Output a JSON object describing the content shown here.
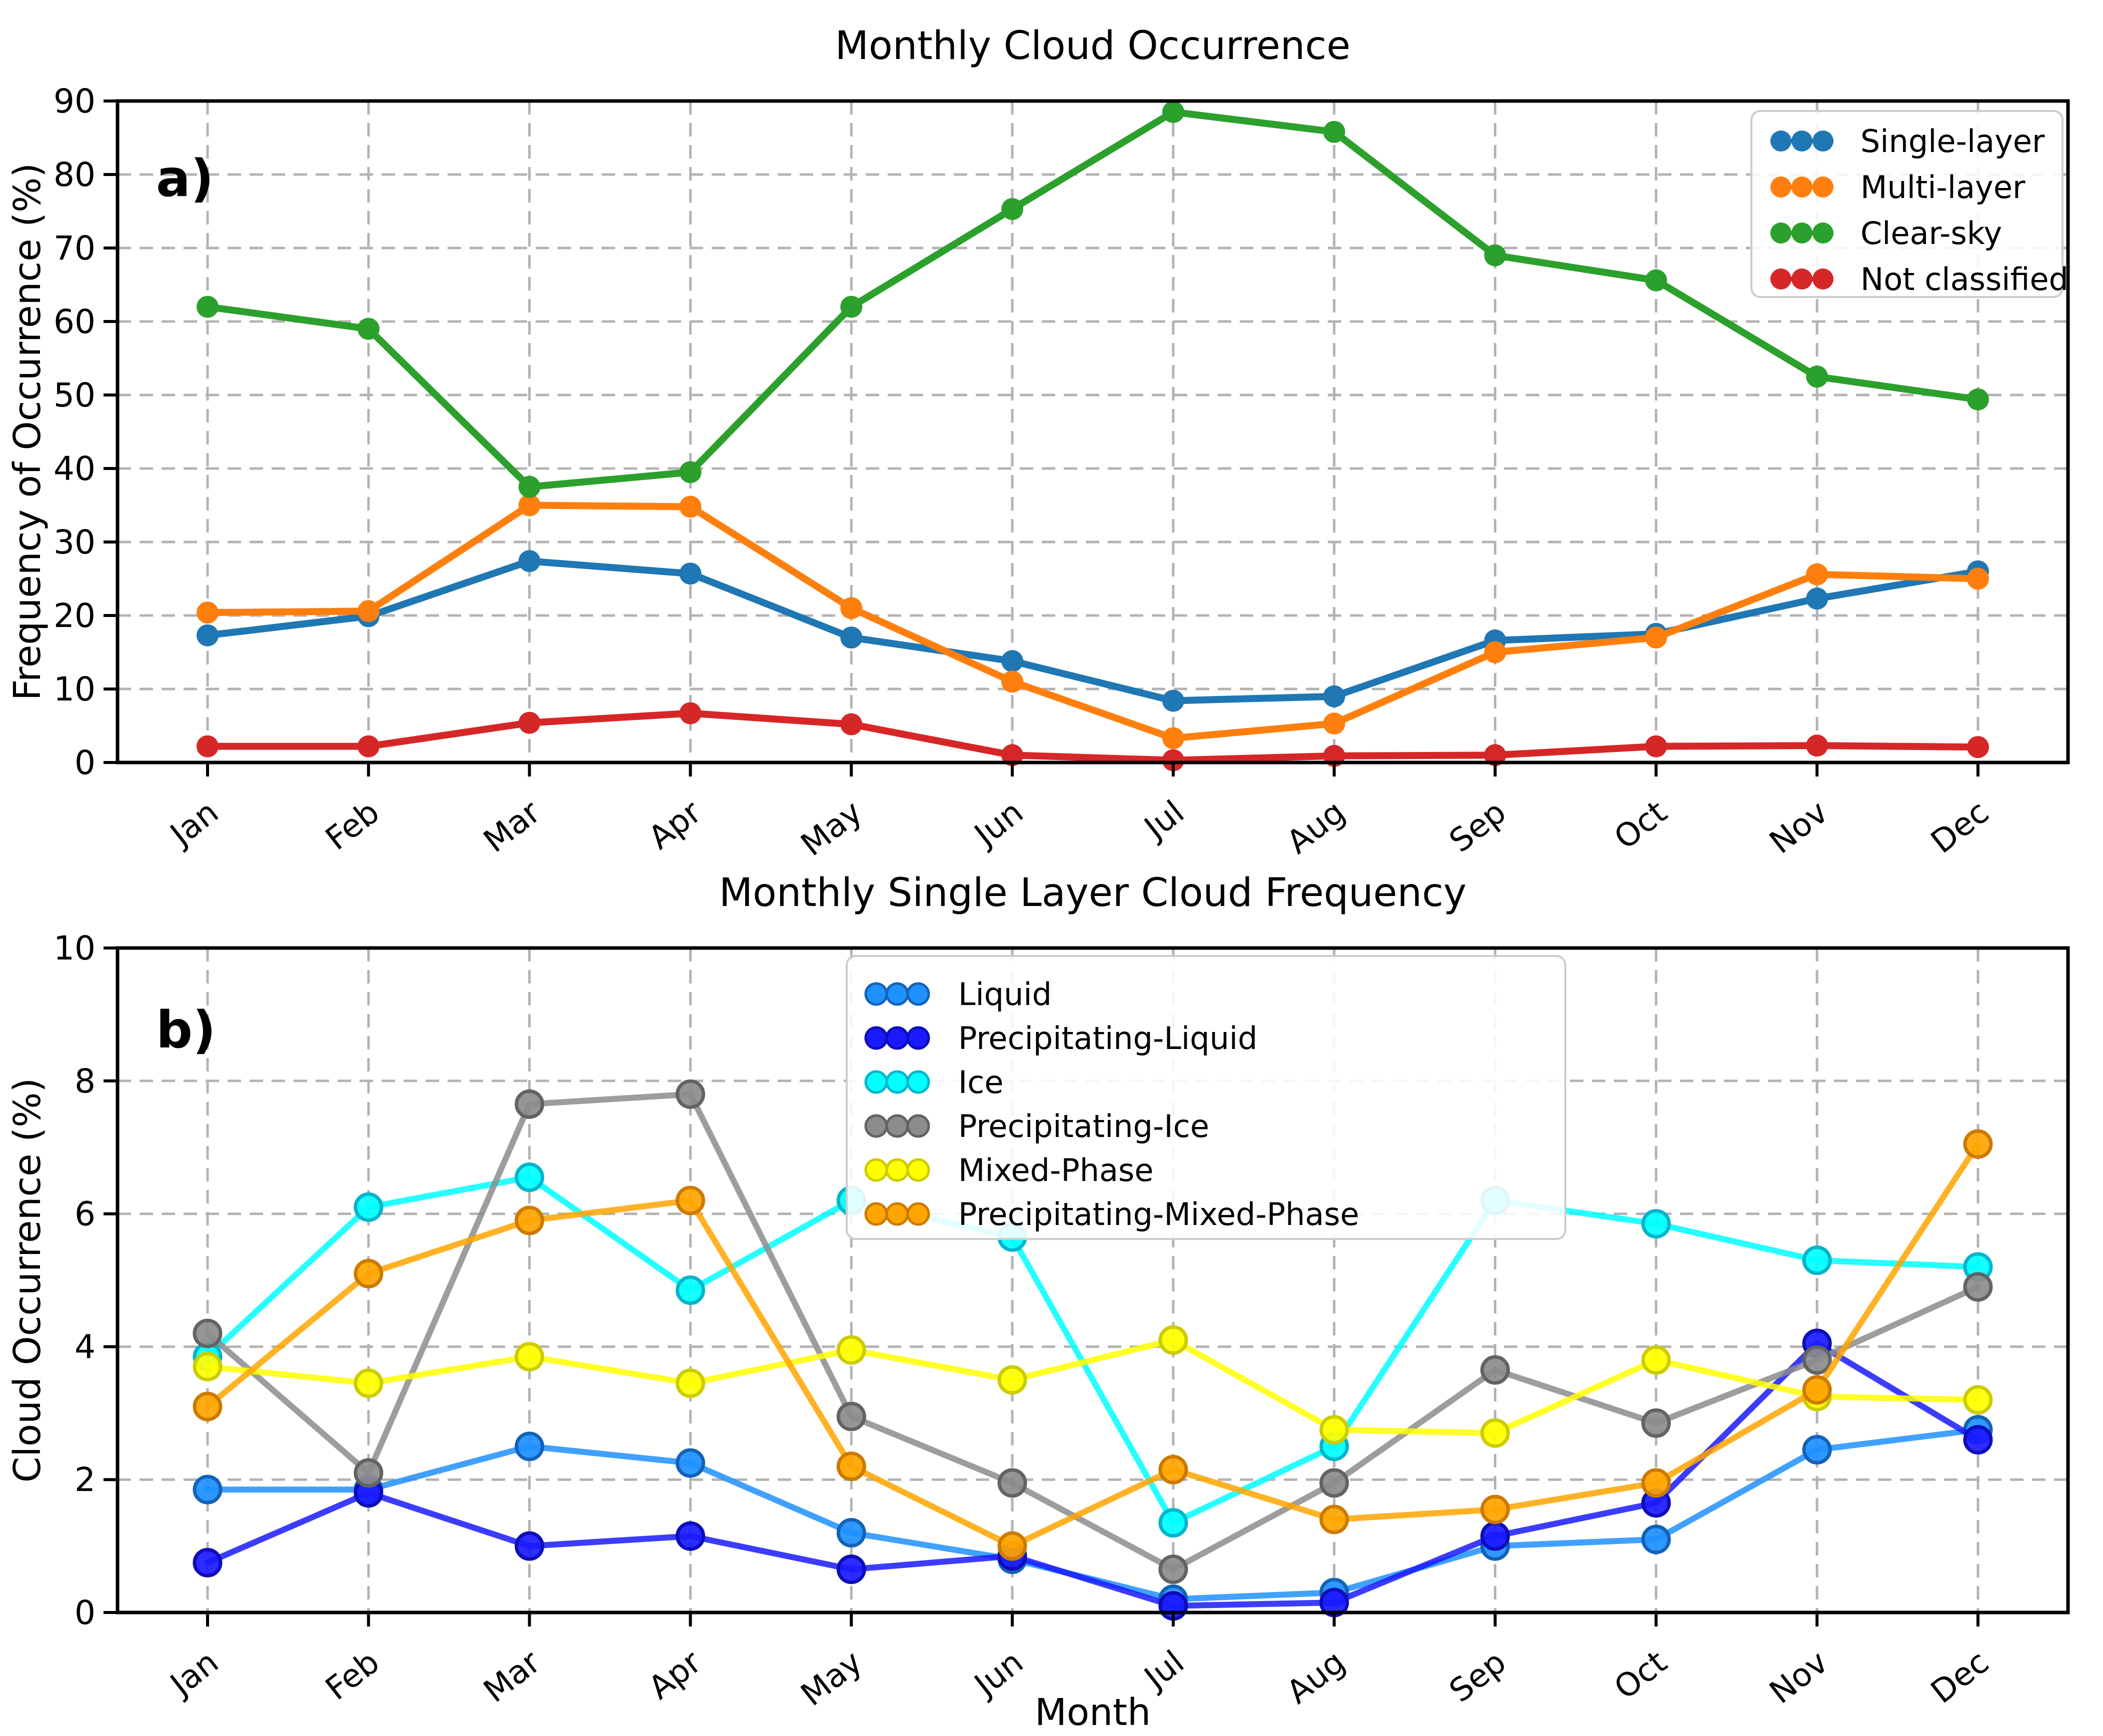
{
  "page": {
    "background": "#ffffff"
  },
  "chart_data": [
    {
      "type": "line",
      "panel_label": "a)",
      "title": "Monthly Cloud Occurrence",
      "xlabel": "",
      "ylabel": "Frequency of Occurrence (%)",
      "ylim": [
        0,
        90
      ],
      "yticks": [
        0,
        10,
        20,
        30,
        40,
        50,
        60,
        70,
        80,
        90
      ],
      "grid": "dashed",
      "legend_position": "upper right",
      "categories": [
        "Jan",
        "Feb",
        "Mar",
        "Apr",
        "May",
        "Jun",
        "Jul",
        "Aug",
        "Sep",
        "Oct",
        "Nov",
        "Dec"
      ],
      "series": [
        {
          "name": "Single-layer",
          "color": "#1f77b4",
          "edge": "#1f77b4",
          "values": [
            17.3,
            19.9,
            27.4,
            25.7,
            17.0,
            13.8,
            8.4,
            9.0,
            16.6,
            17.5,
            22.3,
            26.0
          ]
        },
        {
          "name": "Multi-layer",
          "color": "#ff7f0e",
          "edge": "#ff7f0e",
          "values": [
            20.4,
            20.6,
            35.0,
            34.8,
            21.0,
            11.0,
            3.3,
            5.3,
            15.0,
            17.0,
            25.6,
            25.0
          ]
        },
        {
          "name": "Clear-sky",
          "color": "#2ca02c",
          "edge": "#2ca02c",
          "values": [
            62.0,
            59.0,
            37.5,
            39.5,
            62.0,
            75.3,
            88.5,
            85.8,
            69.0,
            65.6,
            52.5,
            49.4
          ]
        },
        {
          "name": "Not classified",
          "color": "#d62728",
          "edge": "#d62728",
          "values": [
            2.2,
            2.2,
            5.4,
            6.7,
            5.2,
            1.0,
            0.3,
            0.9,
            1.0,
            2.2,
            2.3,
            2.1
          ]
        }
      ]
    },
    {
      "type": "line",
      "panel_label": "b)",
      "title": "Monthly Single Layer Cloud Frequency",
      "xlabel": "Month",
      "ylabel": "Cloud Occurrence (%)",
      "ylim": [
        0,
        10
      ],
      "yticks": [
        0,
        2,
        4,
        6,
        8,
        10
      ],
      "grid": "dashed",
      "legend_position": "upper center",
      "categories": [
        "Jan",
        "Feb",
        "Mar",
        "Apr",
        "May",
        "Jun",
        "Jul",
        "Aug",
        "Sep",
        "Oct",
        "Nov",
        "Dec"
      ],
      "series": [
        {
          "name": "Liquid",
          "color": "#1e90ff",
          "edge": "#1263b8",
          "values": [
            1.85,
            1.85,
            2.5,
            2.25,
            1.2,
            0.8,
            0.2,
            0.3,
            1.0,
            1.1,
            2.45,
            2.75
          ]
        },
        {
          "name": "Precipitating-Liquid",
          "color": "#1a1aff",
          "edge": "#0d0dbb",
          "values": [
            0.75,
            1.8,
            1.0,
            1.15,
            0.65,
            0.85,
            0.1,
            0.15,
            1.15,
            1.65,
            4.05,
            2.6
          ]
        },
        {
          "name": "Ice",
          "color": "#00ffff",
          "edge": "#00b5cc",
          "values": [
            3.85,
            6.1,
            6.55,
            4.85,
            6.2,
            5.65,
            1.35,
            2.5,
            6.2,
            5.85,
            5.3,
            5.2
          ]
        },
        {
          "name": "Precipitating-Ice",
          "color": "#8c8c8c",
          "edge": "#636363",
          "values": [
            4.2,
            2.1,
            7.65,
            7.8,
            2.95,
            1.95,
            0.65,
            1.95,
            3.65,
            2.85,
            3.8,
            4.9
          ]
        },
        {
          "name": "Mixed-Phase",
          "color": "#ffff00",
          "edge": "#cccc00",
          "values": [
            3.7,
            3.45,
            3.85,
            3.45,
            3.95,
            3.5,
            4.1,
            2.75,
            2.7,
            3.8,
            3.25,
            3.2
          ]
        },
        {
          "name": "Precipitating-Mixed-Phase",
          "color": "#ffa500",
          "edge": "#cc7a00",
          "values": [
            3.1,
            5.1,
            5.9,
            6.2,
            2.2,
            1.0,
            2.15,
            1.4,
            1.55,
            1.95,
            3.35,
            7.05
          ]
        }
      ]
    }
  ],
  "style": {
    "grid_color": "#b3b3b3",
    "axis_color": "#000000",
    "legend_border": "#cccccc",
    "legend_bg": "#ffffff"
  }
}
